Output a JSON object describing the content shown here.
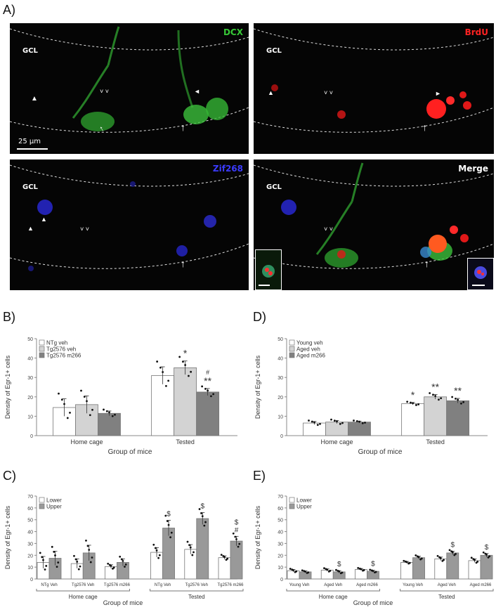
{
  "figure": {
    "labels": {
      "A": "A)",
      "B": "B)",
      "C": "C)",
      "D": "D)",
      "E": "E)"
    },
    "micrographs": {
      "gcl": "GCL",
      "scale_bar": "25 µm",
      "channels": [
        {
          "name": "DCX",
          "color": "#37c837"
        },
        {
          "name": "BrdU",
          "color": "#ff2222"
        },
        {
          "name": "Zif268",
          "color": "#3b3bff"
        },
        {
          "name": "Merge",
          "color": "#ffffff"
        }
      ]
    }
  },
  "chart_data": [
    {
      "panel": "B",
      "type": "bar",
      "ylabel": "Density of Egr-1+ cells",
      "xlabel": "Group of mice",
      "ylim": [
        0,
        50
      ],
      "yticks": [
        0,
        10,
        20,
        30,
        40,
        50
      ],
      "groups": [
        "Home cage",
        "Tested"
      ],
      "legend": [
        "NTg veh",
        "Tg2576 veh",
        "Tg2576 m266"
      ],
      "colors": [
        "#ffffff",
        "#d3d3d3",
        "#808080"
      ],
      "series": [
        {
          "name": "NTg veh",
          "values": [
            14.5,
            31
          ],
          "sem": [
            4.5,
            4.5
          ],
          "annotations": [
            "",
            ""
          ]
        },
        {
          "name": "Tg2576 veh",
          "values": [
            16,
            35
          ],
          "sem": [
            4.5,
            3.5
          ],
          "annotations": [
            "",
            "*"
          ]
        },
        {
          "name": "Tg2576 m266",
          "values": [
            11.5,
            22.5
          ],
          "sem": [
            1.2,
            1.8
          ],
          "annotations": [
            "",
            "# **"
          ]
        }
      ],
      "bar_labels": []
    },
    {
      "panel": "D",
      "type": "bar",
      "ylabel": "Density of Egr-1+ cells",
      "xlabel": "Group of mice",
      "ylim": [
        0,
        50
      ],
      "yticks": [
        0,
        10,
        20,
        30,
        40,
        50
      ],
      "groups": [
        "Home cage",
        "Tested"
      ],
      "legend": [
        "Young veh",
        "Aged veh",
        "Aged m266"
      ],
      "colors": [
        "#ffffff",
        "#d3d3d3",
        "#808080"
      ],
      "series": [
        {
          "name": "Young veh",
          "values": [
            6.5,
            16.5
          ],
          "sem": [
            0.8,
            0.6
          ],
          "annotations": [
            "",
            "*"
          ]
        },
        {
          "name": "Aged veh",
          "values": [
            7,
            20
          ],
          "sem": [
            0.8,
            1.2
          ],
          "annotations": [
            "",
            "**"
          ]
        },
        {
          "name": "Aged m266",
          "values": [
            7,
            18
          ],
          "sem": [
            0.5,
            1.2
          ],
          "annotations": [
            "",
            "**"
          ]
        }
      ],
      "bar_labels": []
    },
    {
      "panel": "C",
      "type": "bar",
      "ylabel": "Density of Egr-1+ cells",
      "xlabel": "Group of mice",
      "ylim": [
        0,
        70
      ],
      "yticks": [
        0,
        10,
        20,
        30,
        40,
        50,
        60,
        70
      ],
      "groups": [
        "Home cage",
        "Tested"
      ],
      "legend": [
        "Lower",
        "Upper"
      ],
      "colors": [
        "#ffffff",
        "#999999"
      ],
      "bar_labels": [
        "NTg Veh",
        "Tg2576 Veh",
        "Tg2576 m266",
        "NTg Veh",
        "Tg2576 Veh",
        "Tg2576 m266"
      ],
      "series": [
        {
          "name": "Lower",
          "values": [
            14,
            13,
            10.5,
            22.5,
            25,
            18
          ],
          "sem": [
            5,
            4,
            1.5,
            4,
            4,
            1.5
          ],
          "annotations": [
            "",
            "",
            "",
            "",
            "",
            ""
          ]
        },
        {
          "name": "Upper",
          "values": [
            17.5,
            22,
            14,
            43,
            51,
            32
          ],
          "sem": [
            6,
            6.5,
            3,
            6.5,
            5,
            4
          ],
          "annotations": [
            "",
            "",
            "",
            "$",
            "$",
            "$ #"
          ]
        }
      ]
    },
    {
      "panel": "E",
      "type": "bar",
      "ylabel": "Density of Egr-1+ cells",
      "xlabel": "Group of mice",
      "ylim": [
        0,
        70
      ],
      "yticks": [
        0,
        10,
        20,
        30,
        40,
        50,
        60,
        70
      ],
      "groups": [
        "Home cage",
        "Tested"
      ],
      "legend": [
        "Lower",
        "Upper"
      ],
      "colors": [
        "#ffffff",
        "#999999"
      ],
      "bar_labels": [
        "Young Veh",
        "Aged Veh",
        "Aged m266",
        "Young Veh",
        "Aged Veh",
        "Aged m266"
      ],
      "series": [
        {
          "name": "Lower",
          "values": [
            7,
            7.5,
            8,
            14,
            17,
            15.5
          ],
          "sem": [
            1,
            1,
            0.8,
            0.8,
            1.5,
            1.5
          ],
          "annotations": [
            "",
            "",
            "",
            "",
            "",
            ""
          ]
        },
        {
          "name": "Upper",
          "values": [
            6,
            6,
            6.5,
            18,
            22,
            20
          ],
          "sem": [
            0.8,
            1,
            0.8,
            1.2,
            1.5,
            1.5
          ],
          "annotations": [
            "",
            "$",
            "$",
            "",
            "$",
            "$"
          ]
        }
      ]
    }
  ]
}
